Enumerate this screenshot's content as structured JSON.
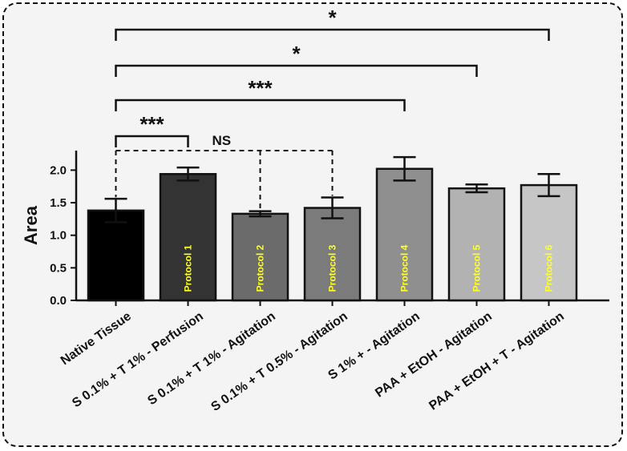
{
  "chart_data": {
    "type": "bar",
    "ylabel": "Area",
    "ylim": [
      0,
      2.3
    ],
    "yticks": [
      "0.0",
      "0.5",
      "1.0",
      "1.5",
      "2.0"
    ],
    "categories": [
      "Native Tissue",
      "S 0.1% + T 1% - Perfusion",
      "S 0.1% + T 1% - Agitation",
      "S 0.1% + T 0.5% - Agitation",
      "S 1% + - Agitation",
      "PAA + EtOH - Agitation",
      "PAA + EtOH + T - Agitation"
    ],
    "values": [
      1.38,
      1.94,
      1.33,
      1.42,
      2.02,
      1.72,
      1.77
    ],
    "errors": [
      0.18,
      0.1,
      0.04,
      0.16,
      0.18,
      0.06,
      0.17
    ],
    "bar_labels": [
      "",
      "Protocol 1",
      "Protocol 2",
      "Protocol 3",
      "Protocol 4",
      "Protocol 5",
      "Protocol 6"
    ],
    "bar_colors": [
      "#000000",
      "#333333",
      "#6b6b6b",
      "#7b7b7b",
      "#8f8f8f",
      "#b2b2b2",
      "#c6c6c6"
    ],
    "label_color": "#ffff2a",
    "significance": [
      {
        "from": 0,
        "to": 1,
        "label": "***",
        "style": "solid"
      },
      {
        "from": 0,
        "to": 4,
        "label": "***",
        "style": "solid"
      },
      {
        "from": 0,
        "to": 5,
        "label": "*",
        "style": "solid"
      },
      {
        "from": 0,
        "to": 6,
        "label": "*",
        "style": "solid"
      },
      {
        "from": 0,
        "to": 3,
        "mid": 2,
        "label": "NS",
        "style": "dashed"
      }
    ]
  }
}
